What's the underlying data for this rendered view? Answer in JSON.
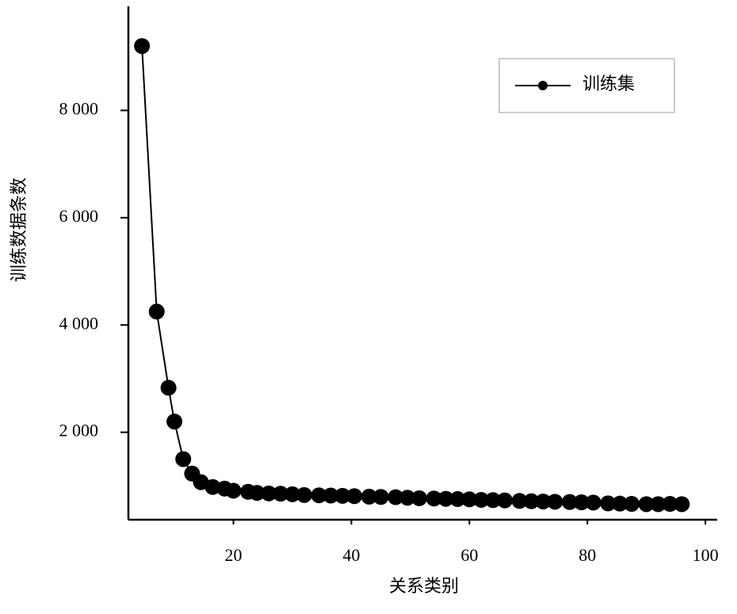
{
  "chart_data": {
    "type": "line",
    "x_label": "关系类别",
    "y_label": "训练数据条数",
    "x": [
      4.5,
      7,
      9,
      10,
      11.5,
      13,
      14.5,
      16.5,
      18.5,
      20,
      22.5,
      24,
      26,
      28,
      30,
      32,
      34.5,
      36.5,
      38.5,
      40.5,
      43,
      45,
      47.5,
      49.5,
      51.5,
      54,
      56,
      58,
      60,
      62,
      64,
      66,
      68.5,
      70.5,
      72.5,
      74.5,
      77,
      79,
      81,
      83.5,
      85.5,
      87.5,
      90,
      92,
      94,
      96
    ],
    "series": [
      {
        "name": "训练集",
        "color": "#000000",
        "values": [
          9200,
          4250,
          2830,
          2200,
          1500,
          1230,
          1070,
          980,
          950,
          910,
          890,
          870,
          860,
          855,
          845,
          830,
          825,
          820,
          815,
          810,
          800,
          795,
          790,
          780,
          770,
          765,
          760,
          755,
          750,
          740,
          735,
          730,
          720,
          715,
          710,
          705,
          700,
          695,
          690,
          675,
          670,
          665,
          660,
          660,
          665,
          660
        ]
      }
    ],
    "xlim": [
      2.2,
      102
    ],
    "xticks": [
      20,
      40,
      60,
      80,
      100
    ],
    "ylim": [
      370,
      9940
    ],
    "yticks": [
      {
        "value": 2000,
        "label": "2 000"
      },
      {
        "value": 4000,
        "label": "4 000"
      },
      {
        "value": 6000,
        "label": "6 000"
      },
      {
        "value": 8000,
        "label": "8 000"
      }
    ],
    "legend": "upper right"
  }
}
